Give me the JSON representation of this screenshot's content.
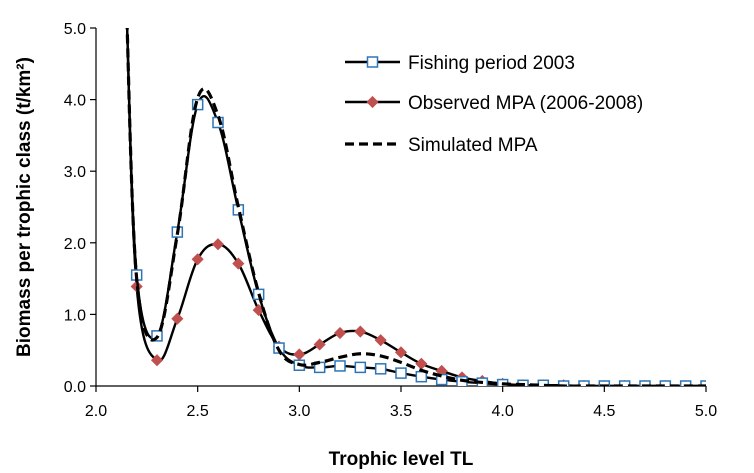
{
  "chart_data": {
    "type": "line",
    "title": "",
    "xlabel": "Trophic level TL",
    "ylabel": "Biomass per trophic class (t/km²)",
    "xlim": [
      2.0,
      5.0
    ],
    "ylim": [
      0.0,
      5.0
    ],
    "xticks": [
      "2.0",
      "2.5",
      "3.0",
      "3.5",
      "4.0",
      "4.5",
      "5.0"
    ],
    "yticks": [
      "0.0",
      "1.0",
      "2.0",
      "3.0",
      "4.0",
      "5.0"
    ],
    "grid": false,
    "legend_position": "top-right",
    "series": [
      {
        "name": "Fishing period 2003",
        "marker": "square",
        "line": "solid",
        "color": "#000000",
        "marker_fill": "#ffffff",
        "marker_edge": "#2e75b6",
        "x": [
          2.15,
          2.2,
          2.3,
          2.4,
          2.5,
          2.6,
          2.7,
          2.8,
          2.9,
          3.0,
          3.1,
          3.2,
          3.3,
          3.4,
          3.5,
          3.6,
          3.7,
          3.8,
          3.9,
          4.0,
          4.1,
          4.2,
          4.3,
          4.4,
          4.5,
          4.6,
          4.7,
          4.8,
          4.9,
          5.0
        ],
        "y": [
          5.3,
          1.55,
          0.7,
          2.15,
          3.93,
          3.68,
          2.46,
          1.28,
          0.53,
          0.29,
          0.26,
          0.28,
          0.26,
          0.24,
          0.18,
          0.13,
          0.09,
          0.06,
          0.04,
          0.02,
          0.01,
          0.01,
          0.0,
          0.0,
          0.0,
          0.0,
          0.0,
          0.0,
          0.0,
          0.0
        ]
      },
      {
        "name": "Observed MPA (2006-2008)",
        "marker": "diamond",
        "line": "solid",
        "color": "#000000",
        "marker_fill": "#c0504d",
        "x": [
          2.15,
          2.2,
          2.3,
          2.4,
          2.5,
          2.6,
          2.7,
          2.8,
          2.9,
          3.0,
          3.1,
          3.2,
          3.3,
          3.4,
          3.5,
          3.6,
          3.7,
          3.8,
          3.9,
          4.0,
          4.1,
          4.2,
          4.3,
          4.4,
          4.5,
          4.6,
          4.7,
          4.8,
          4.9,
          5.0
        ],
        "y": [
          5.3,
          1.39,
          0.36,
          0.94,
          1.77,
          1.98,
          1.71,
          1.06,
          0.55,
          0.44,
          0.58,
          0.74,
          0.76,
          0.64,
          0.47,
          0.31,
          0.21,
          0.12,
          0.07,
          0.03,
          0.01,
          0.01,
          0.01,
          0.0,
          0.0,
          0.0,
          0.0,
          0.0,
          0.0,
          0.0
        ]
      },
      {
        "name": "Simulated MPA",
        "marker": "none",
        "line": "dashed",
        "color": "#000000",
        "x": [
          2.15,
          2.2,
          2.3,
          2.4,
          2.5,
          2.6,
          2.7,
          2.8,
          2.9,
          3.0,
          3.1,
          3.2,
          3.3,
          3.4,
          3.5,
          3.6,
          3.7,
          3.8,
          3.9,
          4.0,
          4.1,
          4.2,
          4.3,
          4.4,
          4.5,
          4.6,
          4.7,
          4.8,
          4.9,
          5.0
        ],
        "y": [
          5.3,
          1.5,
          0.68,
          2.12,
          4.02,
          3.78,
          2.5,
          1.3,
          0.5,
          0.3,
          0.33,
          0.4,
          0.45,
          0.42,
          0.33,
          0.22,
          0.14,
          0.08,
          0.05,
          0.03,
          0.02,
          0.01,
          0.0,
          0.0,
          0.0,
          0.0,
          0.0,
          0.0,
          0.0,
          0.0
        ]
      }
    ]
  }
}
